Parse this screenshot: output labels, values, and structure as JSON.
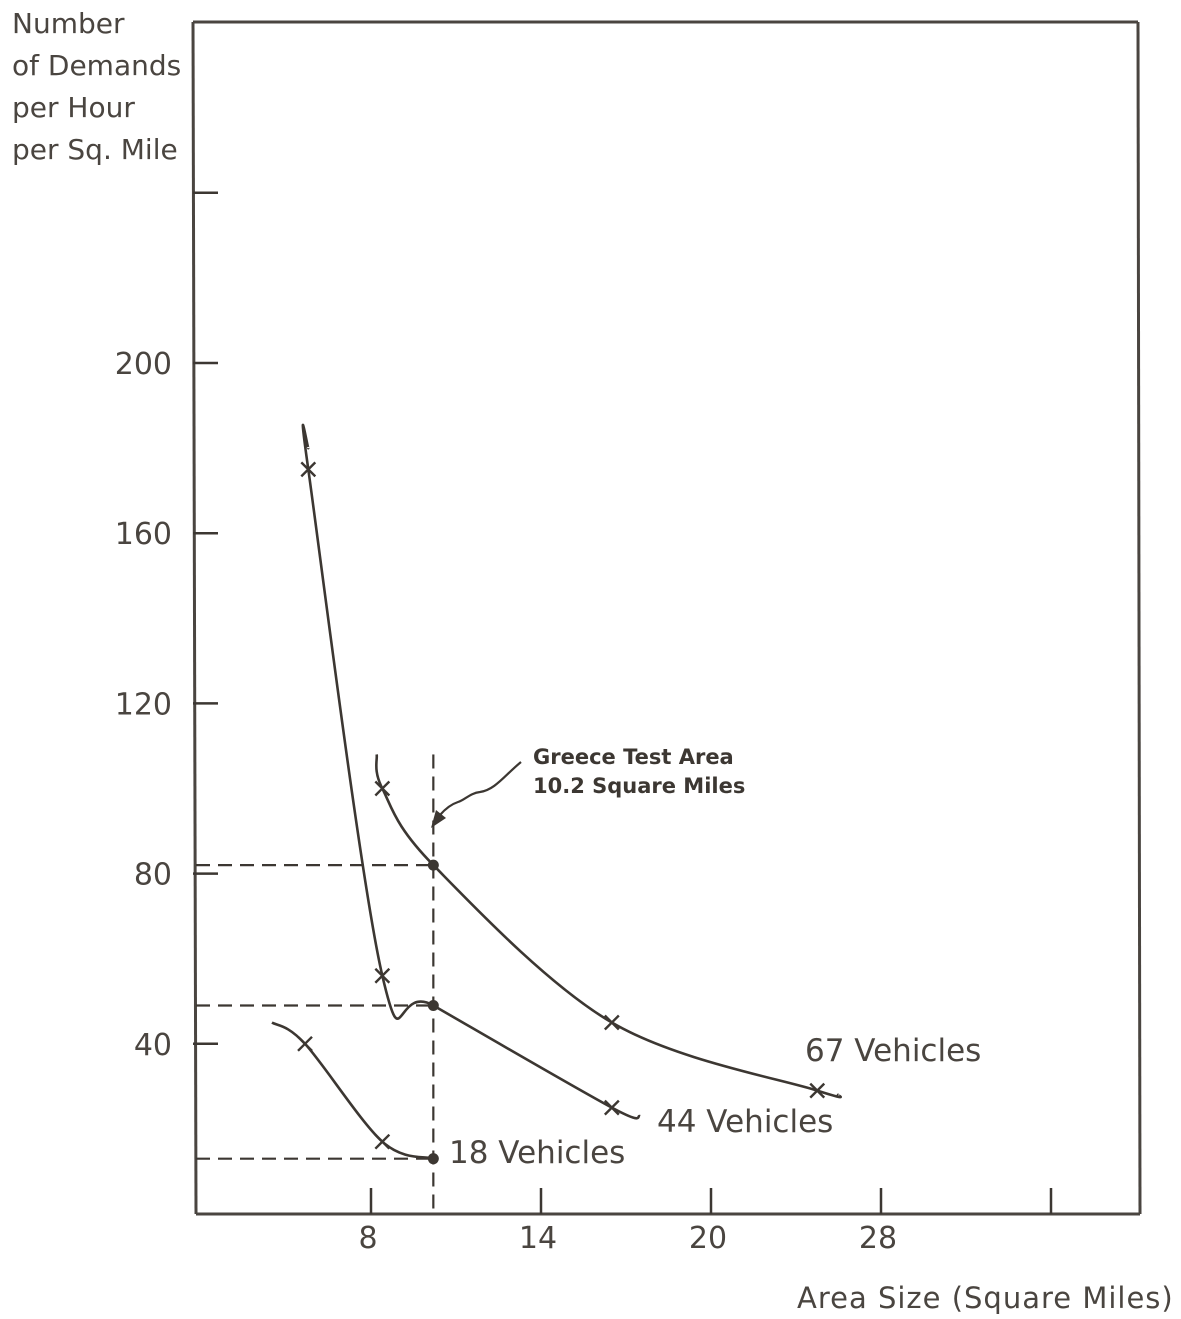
{
  "chart_data": {
    "type": "line",
    "title": "",
    "ylabel_lines": [
      "Number",
      "of Demands",
      "per Hour",
      "per Sq. Mile"
    ],
    "xlabel": "Area Size (Square Miles)",
    "x_ticks": [
      {
        "value": 8,
        "label": "8"
      },
      {
        "value": 14,
        "label": "14"
      },
      {
        "value": 20,
        "label": "20"
      },
      {
        "value": 28,
        "label": "28"
      }
    ],
    "x_unlabeled_tick_count": 1,
    "y_ticks": [
      {
        "value": 40,
        "label": "40"
      },
      {
        "value": 80,
        "label": "80"
      },
      {
        "value": 120,
        "label": "120"
      },
      {
        "value": 160,
        "label": "160"
      },
      {
        "value": 200,
        "label": "200"
      }
    ],
    "y_unlabeled_tick_count": 1,
    "ylim": [
      0,
      240
    ],
    "series": [
      {
        "name": "18 Vehicles",
        "points": [
          [
            5,
            45
          ],
          [
            6,
            40
          ],
          [
            8.4,
            17
          ],
          [
            10.2,
            13
          ]
        ],
        "markers": [
          [
            6,
            40
          ],
          [
            8.4,
            17
          ]
        ],
        "dot": [
          10.2,
          13
        ]
      },
      {
        "name": "44 Vehicles",
        "points": [
          [
            6.1,
            180
          ],
          [
            6.1,
            175
          ],
          [
            8.4,
            56
          ],
          [
            10.2,
            49
          ],
          [
            16.5,
            25
          ],
          [
            17.5,
            23
          ]
        ],
        "markers": [
          [
            6.1,
            175
          ],
          [
            8.4,
            56
          ],
          [
            16.5,
            25
          ]
        ],
        "dot": [
          10.2,
          49
        ]
      },
      {
        "name": "67 Vehicles",
        "points": [
          [
            8.2,
            108
          ],
          [
            8.4,
            100
          ],
          [
            10.2,
            82
          ],
          [
            16.5,
            45
          ],
          [
            25,
            29
          ],
          [
            26,
            28
          ]
        ],
        "markers": [
          [
            8.4,
            100
          ],
          [
            16.5,
            45
          ],
          [
            25,
            29
          ]
        ],
        "dot": [
          10.2,
          82
        ]
      }
    ],
    "reference": {
      "x": 10.2,
      "y_values": [
        82,
        49,
        13
      ]
    },
    "annotation": {
      "lines": [
        "Greece Test Area",
        "10.2 Square Miles"
      ]
    },
    "grid": false
  }
}
